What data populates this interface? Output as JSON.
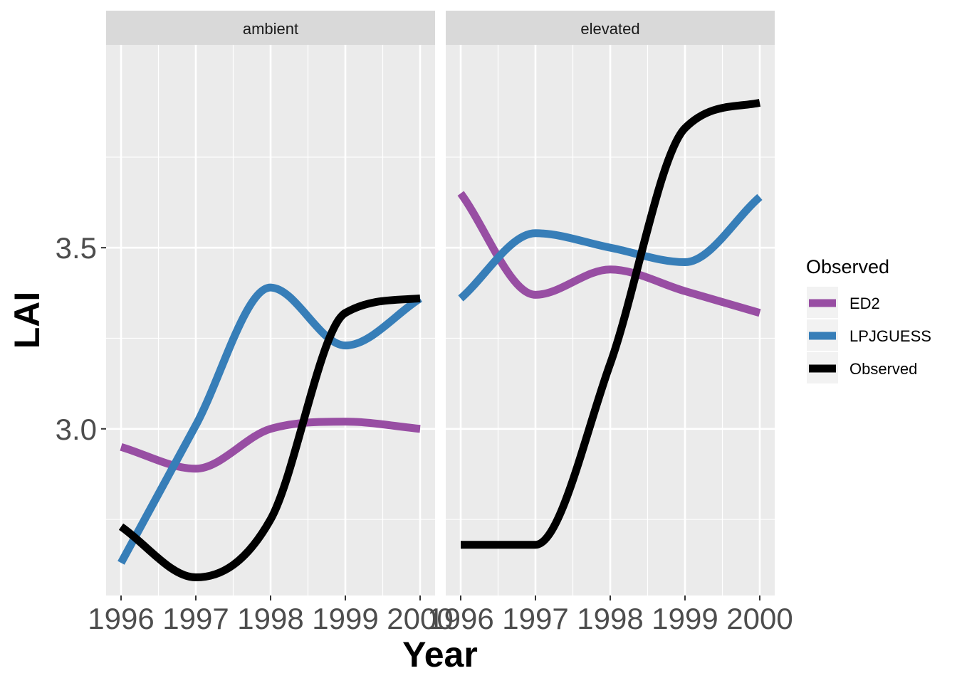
{
  "chart_data": {
    "type": "line",
    "xlabel": "Year",
    "ylabel": "LAI",
    "x": [
      1996,
      1997,
      1998,
      1999,
      2000
    ],
    "x_tick_labels": [
      "1996",
      "1997",
      "1998",
      "1999",
      "2000"
    ],
    "xlim": [
      1995.8,
      2000.2
    ],
    "ylim": [
      2.54,
      4.06
    ],
    "y_ticks": [
      3.0,
      3.5
    ],
    "y_tick_labels": [
      "3.0",
      "3.5"
    ],
    "grid": true,
    "legend": {
      "title": "Observed",
      "placement": "right",
      "entries": [
        "ED2",
        "LPJGUESS",
        "Observed"
      ]
    },
    "panels": [
      {
        "label": "ambient",
        "series": [
          {
            "name": "ED2",
            "color": "#984ea3",
            "values": [
              2.95,
              2.89,
              3.0,
              3.02,
              3.0
            ]
          },
          {
            "name": "LPJGUESS",
            "color": "#377eb8",
            "values": [
              2.63,
              3.01,
              3.39,
              3.23,
              3.36
            ]
          },
          {
            "name": "Observed",
            "color": "#000000",
            "values": [
              2.73,
              2.59,
              2.75,
              3.32,
              3.36
            ]
          }
        ]
      },
      {
        "label": "elevated",
        "series": [
          {
            "name": "ED2",
            "color": "#984ea3",
            "values": [
              3.65,
              3.37,
              3.44,
              3.38,
              3.32
            ]
          },
          {
            "name": "LPJGUESS",
            "color": "#377eb8",
            "values": [
              3.36,
              3.54,
              3.5,
              3.46,
              3.64
            ]
          },
          {
            "name": "Observed",
            "color": "#000000",
            "values": [
              2.68,
              2.68,
              3.18,
              3.83,
              3.9
            ]
          }
        ]
      }
    ]
  }
}
